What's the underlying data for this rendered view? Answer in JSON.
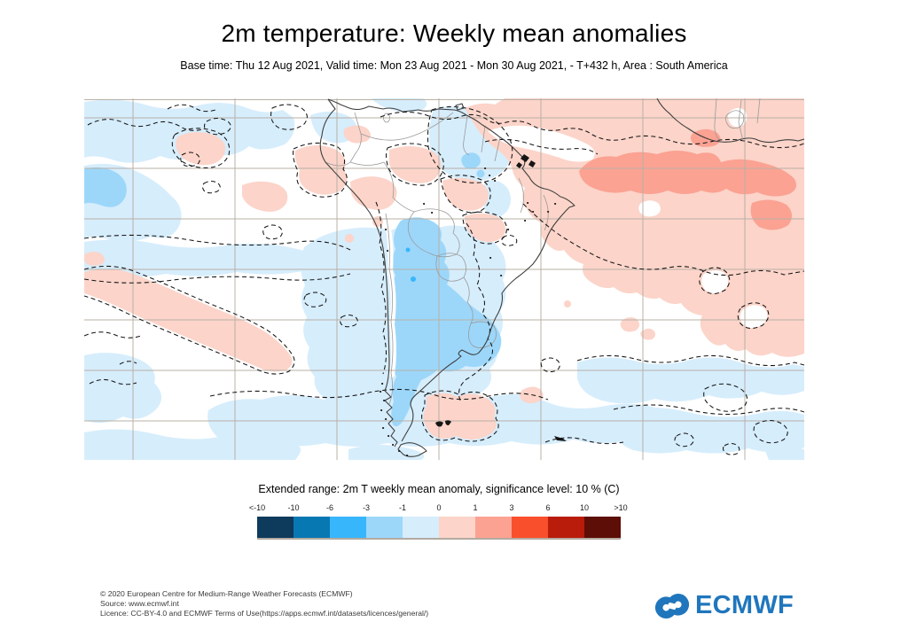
{
  "header": {
    "title": "2m temperature: Weekly mean anomalies",
    "subtitle": "Base time: Thu 12 Aug 2021, Valid time: Mon 23 Aug 2021 - Mon 30 Aug 2021, - T+432 h, Area : South America"
  },
  "legend": {
    "title": "Extended range: 2m T weekly mean anomaly, significance level: 10 % (C)",
    "ticks": [
      "<-10",
      "-10",
      "-6",
      "-3",
      "-1",
      "0",
      "1",
      "3",
      "6",
      "10",
      ">10"
    ],
    "colors": [
      "#0e3a5c",
      "#0878b2",
      "#38b6fc",
      "#9cd7fa",
      "#d6edfc",
      "#fcd4c9",
      "#fba293",
      "#fa4f2c",
      "#b91c0a",
      "#5c0e07"
    ]
  },
  "map": {
    "palette": {
      "pale_blue": "#d6edfc",
      "med_blue": "#9cd7fa",
      "bright_blue": "#38b6fc",
      "pale_pink": "#fcd4c9",
      "salmon": "#fba293",
      "grid": "#b8b0a6",
      "coast": "#3f3f3f",
      "border": "#9a9a9a",
      "contour": "#151515"
    }
  },
  "footer": {
    "copyright": "© 2020 European Centre for Medium-Range Weather Forecasts (ECMWF)",
    "source": "Source: www.ecmwf.int",
    "licence": "Licence: CC-BY-4.0 and ECMWF Terms of Use(https://apps.ecmwf.int/datasets/licences/general/)",
    "logo_text": "ECMWF",
    "logo_color": "#2076bc"
  }
}
